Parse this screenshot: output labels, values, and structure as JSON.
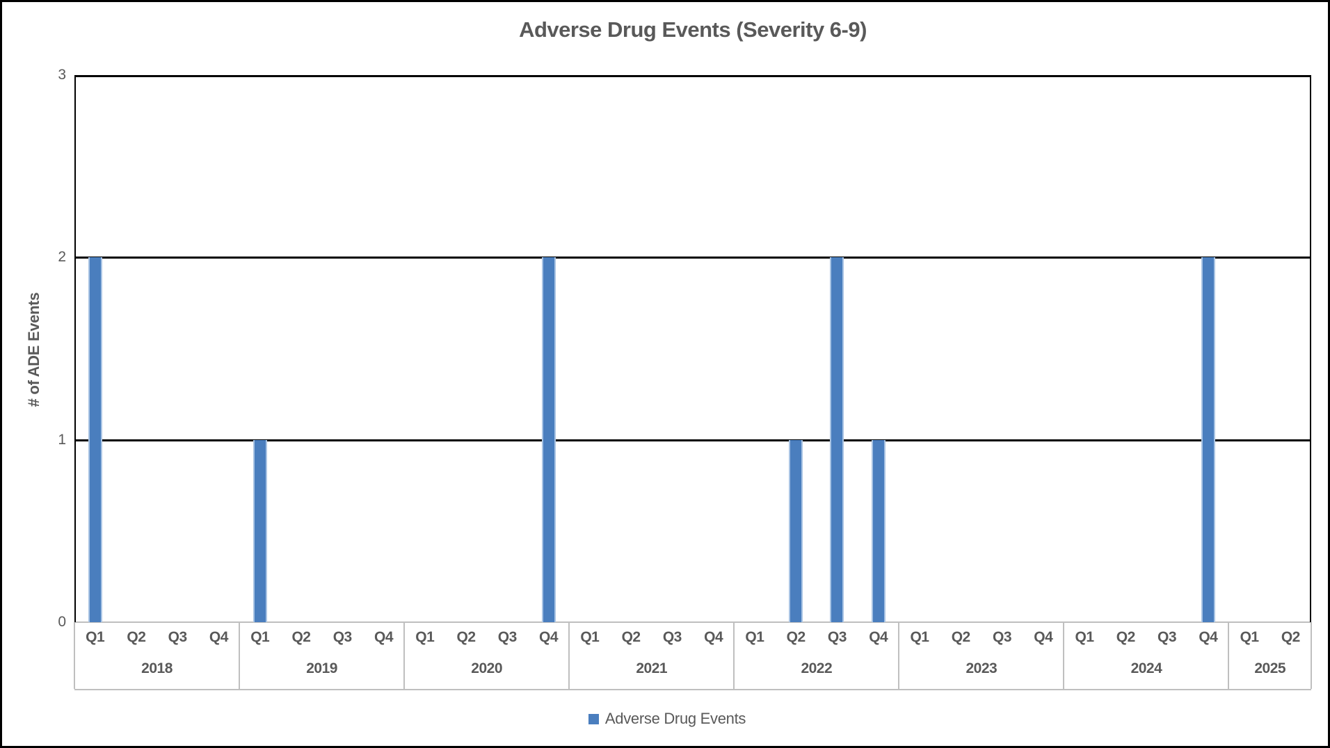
{
  "chart_data": {
    "type": "bar",
    "title": "Adverse Drug Events (Severity 6-9)",
    "xlabel": "",
    "ylabel": "# of ADE Events",
    "ylim": [
      0,
      3
    ],
    "yticks": [
      3,
      2,
      1,
      0
    ],
    "grid": "horizontal-black-lines",
    "legend_position": "bottom-center",
    "series_name": "Adverse Drug Events",
    "year_groups": [
      {
        "year": "2018",
        "quarters": [
          "Q1",
          "Q2",
          "Q3",
          "Q4"
        ],
        "values": [
          2,
          0,
          0,
          0
        ]
      },
      {
        "year": "2019",
        "quarters": [
          "Q1",
          "Q2",
          "Q3",
          "Q4"
        ],
        "values": [
          1,
          0,
          0,
          0
        ]
      },
      {
        "year": "2020",
        "quarters": [
          "Q1",
          "Q2",
          "Q3",
          "Q4"
        ],
        "values": [
          0,
          0,
          0,
          2
        ]
      },
      {
        "year": "2021",
        "quarters": [
          "Q1",
          "Q2",
          "Q3",
          "Q4"
        ],
        "values": [
          0,
          0,
          0,
          0
        ]
      },
      {
        "year": "2022",
        "quarters": [
          "Q1",
          "Q2",
          "Q3",
          "Q4"
        ],
        "values": [
          0,
          1,
          2,
          1
        ]
      },
      {
        "year": "2023",
        "quarters": [
          "Q1",
          "Q2",
          "Q3",
          "Q4"
        ],
        "values": [
          0,
          0,
          0,
          0
        ]
      },
      {
        "year": "2024",
        "quarters": [
          "Q1",
          "Q2",
          "Q3",
          "Q4"
        ],
        "values": [
          0,
          0,
          0,
          2
        ]
      },
      {
        "year": "2025",
        "quarters": [
          "Q1",
          "Q2"
        ],
        "values": [
          0,
          0
        ]
      }
    ]
  },
  "legend": {
    "label": "Adverse Drug Events"
  },
  "colors": {
    "bar_fill": "#4A7EBE",
    "bar_edge": "#A9C4E4",
    "gridline": "#000000",
    "plot_border": "#000000",
    "category_axis_line": "#BFBFBF",
    "category_separator": "#BFBFBF",
    "text": "#595959",
    "background": "#FFFFFF",
    "outer_border": "#000000"
  }
}
